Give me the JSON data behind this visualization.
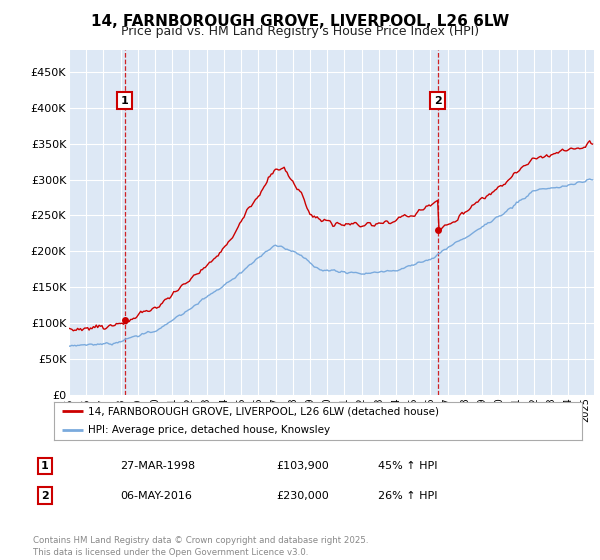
{
  "title": "14, FARNBOROUGH GROVE, LIVERPOOL, L26 6LW",
  "subtitle": "Price paid vs. HM Land Registry's House Price Index (HPI)",
  "legend_line1": "14, FARNBOROUGH GROVE, LIVERPOOL, L26 6LW (detached house)",
  "legend_line2": "HPI: Average price, detached house, Knowsley",
  "annotation1_date": "27-MAR-1998",
  "annotation1_price": "£103,900",
  "annotation1_hpi": "45% ↑ HPI",
  "annotation1_year": 1998.23,
  "annotation1_value": 103900,
  "annotation2_date": "06-MAY-2016",
  "annotation2_price": "£230,000",
  "annotation2_hpi": "26% ↑ HPI",
  "annotation2_year": 2016.42,
  "annotation2_value": 230000,
  "yticks": [
    0,
    50000,
    100000,
    150000,
    200000,
    250000,
    300000,
    350000,
    400000,
    450000
  ],
  "ylim": [
    0,
    480000
  ],
  "xlim_start": 1995.0,
  "xlim_end": 2025.5,
  "red_color": "#cc0000",
  "blue_color": "#7aaadd",
  "background_color": "#dde8f5",
  "grid_color": "#ffffff",
  "footer": "Contains HM Land Registry data © Crown copyright and database right 2025.\nThis data is licensed under the Open Government Licence v3.0."
}
